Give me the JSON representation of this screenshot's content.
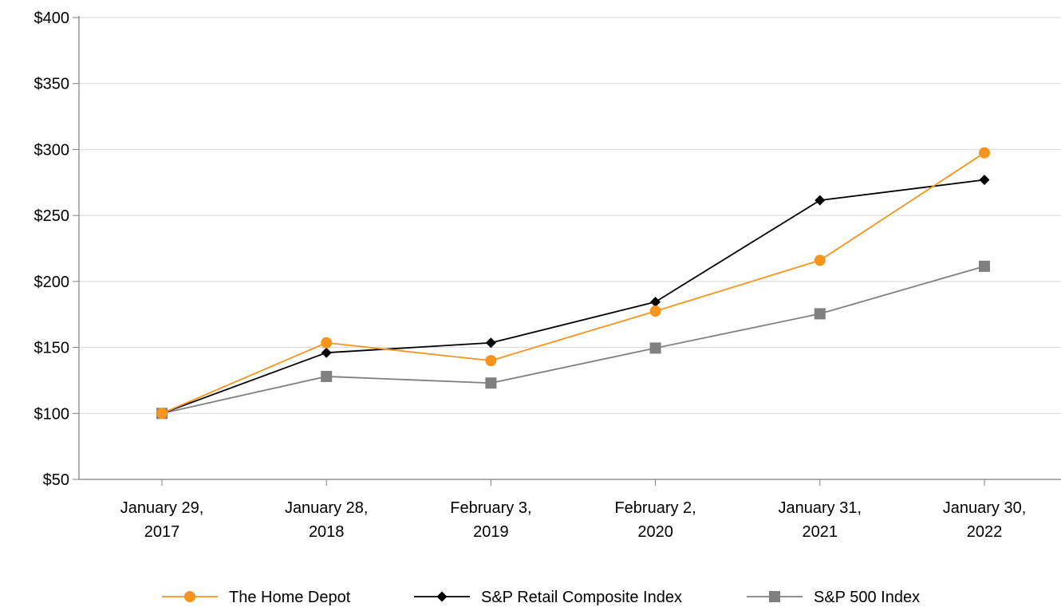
{
  "chart_data": {
    "type": "line",
    "title": "",
    "xlabel": "",
    "ylabel": "",
    "categories": [
      [
        "January 29,",
        "2017"
      ],
      [
        "January 28,",
        "2018"
      ],
      [
        "February 3,",
        "2019"
      ],
      [
        "February 2,",
        "2020"
      ],
      [
        "January 31,",
        "2021"
      ],
      [
        "January 30,",
        "2022"
      ]
    ],
    "ylim": [
      50,
      400
    ],
    "yticks": [
      50,
      100,
      150,
      200,
      250,
      300,
      350,
      400
    ],
    "ytick_labels": [
      "$50",
      "$100",
      "$150",
      "$200",
      "$250",
      "$300",
      "$350",
      "$400"
    ],
    "grid": true,
    "legend_position": "bottom",
    "series": [
      {
        "name": "The Home Depot",
        "values": [
          100,
          153.5,
          140,
          177.5,
          216,
          297.5
        ],
        "color": "#F7941D",
        "marker": "circle"
      },
      {
        "name": "S&P Retail Composite Index",
        "values": [
          100,
          146,
          153.5,
          184.5,
          261.5,
          277
        ],
        "color": "#000000",
        "marker": "diamond"
      },
      {
        "name": "S&P 500 Index",
        "values": [
          100,
          128,
          123,
          149.5,
          175.5,
          211.5
        ],
        "color": "#808080",
        "marker": "square"
      }
    ]
  }
}
